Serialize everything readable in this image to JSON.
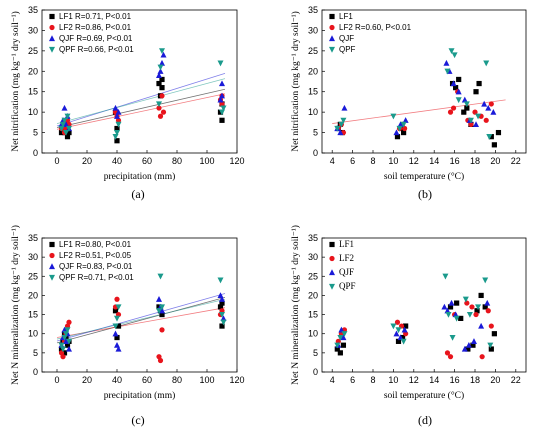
{
  "colors": {
    "LF1": "#000000",
    "LF2": "#e8141c",
    "QJF": "#1a1ad8",
    "QPF": "#1a9a8c"
  },
  "chart_data": [
    {
      "type": "scatter",
      "panel": "(a)",
      "xlabel": "precipitation (mm)",
      "ylabel": "Net nitrification (mg kg⁻¹ dry soil⁻¹)",
      "xlim": [
        -10,
        120
      ],
      "ylim": [
        0,
        35
      ],
      "xticks": [
        "0",
        "20",
        "40",
        "60",
        "80",
        "100",
        "120"
      ],
      "yticks": [
        "0",
        "5",
        "10",
        "15",
        "20",
        "25",
        "30",
        "35"
      ],
      "legend_position": "top-left",
      "legend_style": "sans",
      "series": [
        {
          "name": "LF1",
          "legend": "LF1 R=0.71, P<0.01",
          "marker": "square",
          "x": [
            3,
            4,
            5,
            5,
            6,
            7,
            8,
            40,
            40,
            39,
            69,
            70,
            70,
            68,
            110,
            109,
            110
          ],
          "y": [
            5,
            6,
            5,
            7,
            6,
            4,
            5,
            3,
            6,
            10,
            14,
            16,
            18,
            17,
            8,
            10,
            12
          ],
          "fit": [
            [
              0,
              6.2
            ],
            [
              112,
              15.6
            ]
          ]
        },
        {
          "name": "LF2",
          "legend": "LF2 R=0.86, P<0.01",
          "marker": "circle",
          "x": [
            3,
            4,
            5,
            6,
            7,
            8,
            40,
            39,
            41,
            68,
            69,
            70,
            71,
            110,
            110,
            109
          ],
          "y": [
            6,
            7,
            5,
            6,
            8,
            7,
            9,
            10,
            8,
            11,
            9,
            14,
            10,
            14,
            12,
            13
          ],
          "fit": [
            [
              0,
              5.8
            ],
            [
              112,
              14.5
            ]
          ]
        },
        {
          "name": "QJF",
          "legend": "QJF R=0.69, P<0.01",
          "marker": "triangle-up",
          "x": [
            3,
            4,
            5,
            6,
            7,
            8,
            39,
            40,
            41,
            68,
            69,
            70,
            71,
            110,
            110,
            109
          ],
          "y": [
            7,
            8,
            11,
            7,
            9,
            6,
            11,
            9,
            10,
            19,
            20,
            22,
            24,
            17,
            14,
            13
          ],
          "fit": [
            [
              0,
              6.6
            ],
            [
              112,
              19.5
            ]
          ]
        },
        {
          "name": "QPF",
          "legend": "QPF R=0.66, P<0.01",
          "marker": "triangle-down",
          "x": [
            3,
            4,
            5,
            6,
            7,
            8,
            39,
            40,
            41,
            68,
            69,
            70,
            109,
            110,
            111
          ],
          "y": [
            6,
            7,
            8,
            5,
            9,
            6,
            4,
            5,
            7,
            12,
            21,
            25,
            22,
            10,
            11
          ],
          "fit": [
            [
              0,
              7.2
            ],
            [
              112,
              18.2
            ]
          ]
        }
      ]
    },
    {
      "type": "scatter",
      "panel": "(b)",
      "xlabel": "soil temperature (°C)",
      "ylabel": "Net nitrification (mg kg⁻¹ dry soil⁻¹)",
      "xlim": [
        3,
        23
      ],
      "ylim": [
        0,
        35
      ],
      "xticks": [
        "4",
        "6",
        "8",
        "10",
        "12",
        "14",
        "16",
        "18",
        "20",
        "22"
      ],
      "yticks": [
        "0",
        "5",
        "10",
        "15",
        "20",
        "25",
        "30",
        "35"
      ],
      "legend_position": "top-left",
      "legend_style": "sans",
      "series": [
        {
          "name": "LF1",
          "legend": "LF1",
          "marker": "square",
          "x": [
            4.6,
            4.8,
            5.0,
            10.4,
            10.8,
            11.0,
            15.8,
            16.1,
            16.4,
            16.9,
            17.2,
            17.6,
            18.1,
            18.4,
            19.6,
            19.9,
            20.3
          ],
          "y": [
            6,
            7,
            5,
            4,
            6,
            5,
            17,
            16,
            18,
            10,
            11,
            7,
            15,
            17,
            4,
            2,
            5
          ],
          "fit": null
        },
        {
          "name": "LF2",
          "legend": "LF2  R=0.60, P<0.01",
          "marker": "circle",
          "x": [
            4.6,
            4.9,
            5.1,
            10.6,
            10.9,
            11.1,
            15.6,
            15.9,
            16.3,
            17.3,
            17.6,
            18.0,
            18.6,
            19.1,
            19.6
          ],
          "y": [
            6,
            7,
            5,
            6,
            7,
            6,
            10,
            11,
            15,
            8,
            7,
            10,
            9,
            8,
            12
          ],
          "fit": [
            [
              4,
              7.2
            ],
            [
              21,
              13.0
            ]
          ]
        },
        {
          "name": "QJF",
          "legend": "QJF",
          "marker": "triangle-up",
          "x": [
            4.5,
            4.8,
            5.2,
            10.3,
            10.7,
            11.2,
            15.2,
            15.5,
            15.9,
            16.4,
            17.0,
            17.5,
            18.1,
            18.9,
            19.3,
            19.8
          ],
          "y": [
            6,
            5,
            11,
            5,
            7,
            8,
            22,
            20,
            17,
            15,
            13,
            8,
            7,
            12,
            11,
            10
          ],
          "fit": null
        },
        {
          "name": "QPF",
          "legend": "QPF",
          "marker": "triangle-down",
          "x": [
            4.5,
            4.9,
            5.1,
            10.0,
            10.6,
            11.0,
            15.3,
            15.7,
            16.0,
            16.4,
            17.2,
            17.6,
            18.3,
            19.1,
            19.4
          ],
          "y": [
            6,
            7,
            8,
            9,
            6,
            7,
            20,
            25,
            24,
            13,
            12,
            8,
            9,
            22,
            4
          ],
          "fit": null
        }
      ]
    },
    {
      "type": "scatter",
      "panel": "(c)",
      "xlabel": "precipitation (mm)",
      "ylabel": "Net N mineralization (mg kg⁻¹ dry soil⁻¹)",
      "xlim": [
        -10,
        120
      ],
      "ylim": [
        0,
        35
      ],
      "xticks": [
        "0",
        "20",
        "40",
        "60",
        "80",
        "100",
        "120"
      ],
      "yticks": [
        "0",
        "5",
        "10",
        "15",
        "20",
        "25",
        "30",
        "35"
      ],
      "legend_position": "top-left",
      "legend_style": "sans",
      "series": [
        {
          "name": "LF1",
          "legend": "LF1 R=0.80, P<0.01",
          "marker": "square",
          "x": [
            3,
            4,
            5,
            5,
            6,
            7,
            8,
            40,
            39,
            41,
            68,
            69,
            70,
            110,
            109,
            110
          ],
          "y": [
            6,
            8,
            10,
            5,
            9,
            7,
            8,
            9,
            16,
            12,
            17,
            16,
            15,
            12,
            17,
            18
          ],
          "fit": [
            [
              0,
              7.6
            ],
            [
              112,
              19.5
            ]
          ]
        },
        {
          "name": "LF2",
          "legend": "LF2 R=0.51, P<0.05",
          "marker": "circle",
          "x": [
            3,
            4,
            5,
            6,
            7,
            8,
            39,
            40,
            41,
            68,
            69,
            70,
            110,
            109
          ],
          "y": [
            5,
            4,
            8,
            10,
            12,
            13,
            17,
            19,
            15,
            4,
            3,
            11,
            16,
            15
          ],
          "fit": [
            [
              0,
              9.0
            ],
            [
              112,
              16.8
            ]
          ]
        },
        {
          "name": "QJF",
          "legend": "QJF R=0.83, P<0.01",
          "marker": "triangle-up",
          "x": [
            3,
            4,
            5,
            6,
            7,
            8,
            39,
            40,
            41,
            68,
            69,
            70,
            109,
            110,
            111
          ],
          "y": [
            7,
            9,
            11,
            8,
            10,
            6,
            10,
            7,
            6,
            19,
            17,
            16,
            20,
            19,
            14
          ],
          "fit": [
            [
              0,
              8.1
            ],
            [
              112,
              20.5
            ]
          ]
        },
        {
          "name": "QPF",
          "legend": "QPF R=0.71, P<0.01",
          "marker": "triangle-down",
          "x": [
            3,
            4,
            5,
            6,
            7,
            8,
            39,
            40,
            41,
            68,
            69,
            70,
            109,
            110,
            111
          ],
          "y": [
            7,
            6,
            9,
            10,
            11,
            8,
            12,
            14,
            17,
            16,
            25,
            17,
            24,
            15,
            13
          ],
          "fit": [
            [
              0,
              8.6
            ],
            [
              112,
              19.0
            ]
          ]
        }
      ]
    },
    {
      "type": "scatter",
      "panel": "(d)",
      "xlabel": "soil temperature (°C)",
      "ylabel": "Net N mineralization (mg kg⁻¹ dry soil⁻¹)",
      "xlim": [
        3,
        23
      ],
      "ylim": [
        0,
        35
      ],
      "xticks": [
        "4",
        "6",
        "8",
        "10",
        "12",
        "14",
        "16",
        "18",
        "20",
        "22"
      ],
      "yticks": [
        "0",
        "5",
        "10",
        "15",
        "20",
        "25",
        "30",
        "35"
      ],
      "legend_position": "top-left",
      "legend_style": "serif",
      "series": [
        {
          "name": "LF1",
          "legend": "LF1",
          "marker": "square",
          "x": [
            4.5,
            4.8,
            5.1,
            10.5,
            10.9,
            11.2,
            15.6,
            16.2,
            16.6,
            17.3,
            17.8,
            18.2,
            18.6,
            19.0,
            19.6,
            19.9
          ],
          "y": [
            6,
            5,
            7,
            8,
            9,
            12,
            17,
            18,
            14,
            6,
            7,
            16,
            20,
            17,
            6,
            10
          ],
          "fit": null
        },
        {
          "name": "LF2",
          "legend": "LF2",
          "marker": "circle",
          "x": [
            4.6,
            4.9,
            5.2,
            10.4,
            10.8,
            11.2,
            15.3,
            15.6,
            16.0,
            17.2,
            17.7,
            18.1,
            18.7,
            19.3,
            19.6
          ],
          "y": [
            8,
            10,
            11,
            13,
            12,
            10,
            5,
            4,
            15,
            18,
            17,
            15,
            4,
            16,
            12
          ],
          "fit": null
        },
        {
          "name": "QJF",
          "legend": "QJF",
          "marker": "triangle-up",
          "x": [
            4.6,
            4.9,
            5.1,
            10.3,
            10.7,
            11.1,
            15.0,
            15.3,
            15.7,
            16.1,
            17.0,
            17.4,
            17.9,
            18.6,
            19.2
          ],
          "y": [
            7,
            11,
            9,
            10,
            9,
            11,
            17,
            16,
            18,
            15,
            6,
            7,
            8,
            12,
            18
          ],
          "fit": null
        },
        {
          "name": "QPF",
          "legend": "QPF",
          "marker": "triangle-down",
          "x": [
            4.5,
            4.8,
            5.2,
            10.0,
            10.5,
            11.0,
            15.1,
            15.4,
            15.8,
            16.2,
            17.1,
            17.5,
            18.3,
            19.0,
            19.5
          ],
          "y": [
            7,
            9,
            10,
            12,
            11,
            8,
            25,
            15,
            9,
            14,
            19,
            15,
            17,
            24,
            7
          ],
          "fit": null
        }
      ]
    }
  ]
}
